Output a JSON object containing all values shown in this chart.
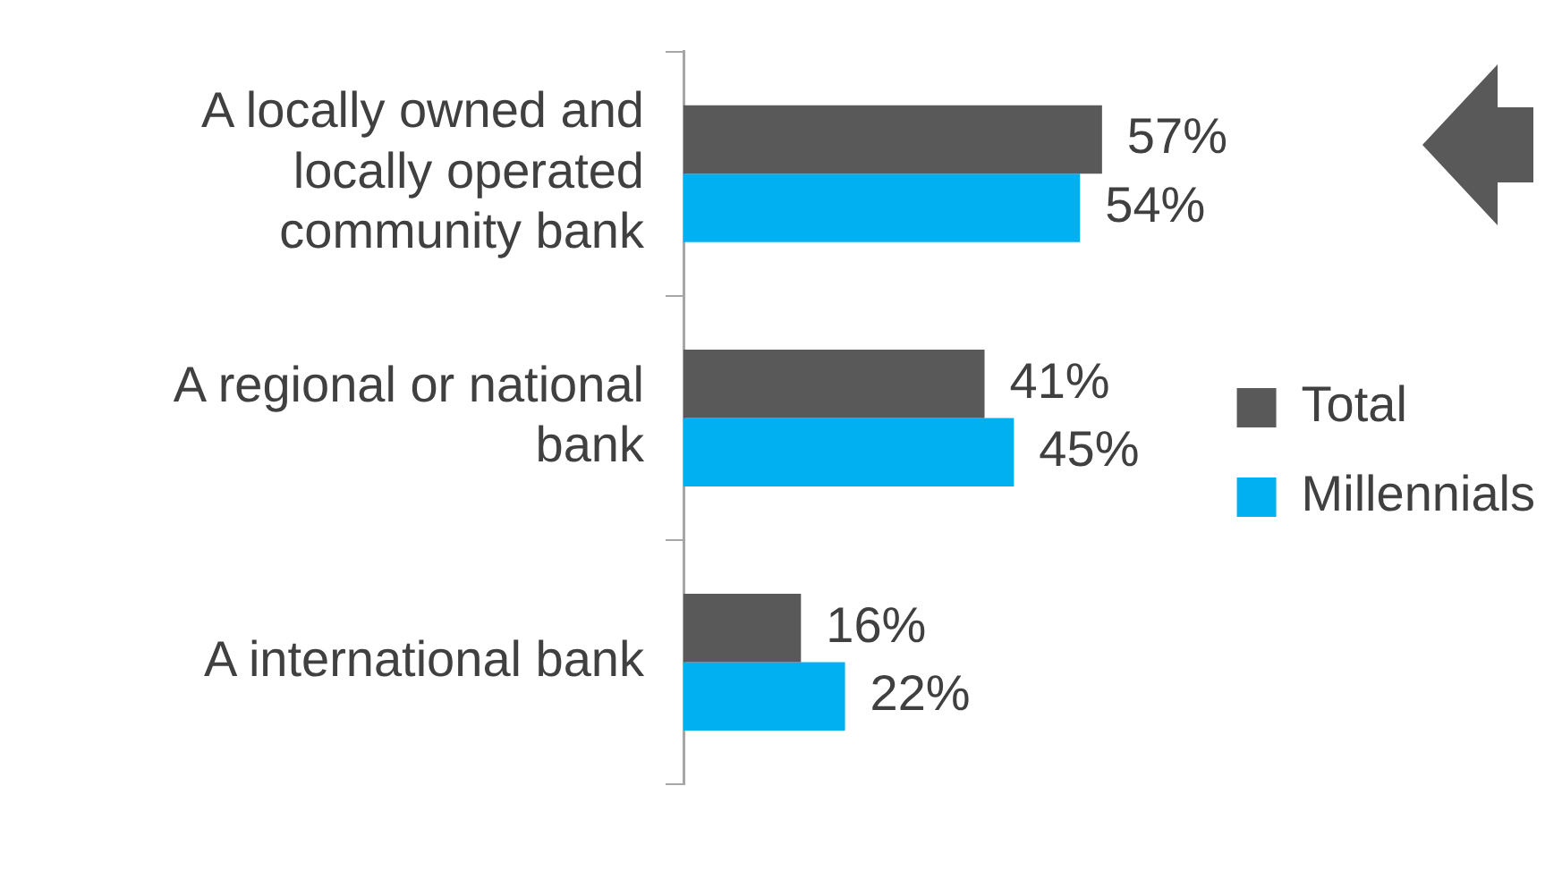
{
  "chart_data": {
    "type": "bar",
    "orientation": "horizontal",
    "categories": [
      "A locally owned and locally operated community bank",
      "A regional or national bank",
      "A international bank"
    ],
    "series": [
      {
        "name": "Total",
        "color": "#595959",
        "values": [
          57,
          41,
          16
        ],
        "value_labels": [
          "57%",
          "41%",
          "16%"
        ]
      },
      {
        "name": "Millennials",
        "color": "#00b0f0",
        "values": [
          54,
          45,
          22
        ],
        "value_labels": [
          "54%",
          "45%",
          "22%"
        ]
      }
    ],
    "legend": "right"
  }
}
